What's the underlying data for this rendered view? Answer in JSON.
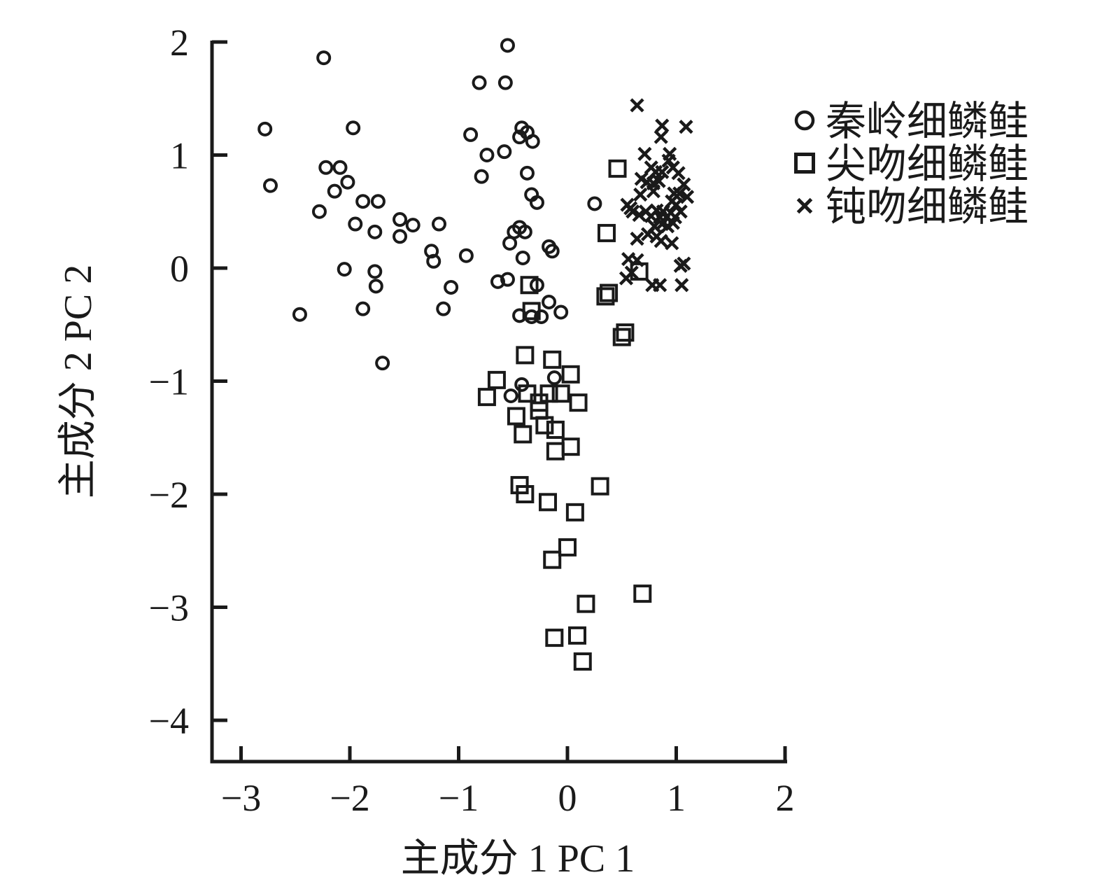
{
  "chart_data": {
    "type": "scatter",
    "title": "",
    "xlabel": "主成分 1 PC 1",
    "ylabel": "主成分 2 PC 2",
    "xticks": [
      -3,
      -2,
      -1,
      0,
      1,
      2
    ],
    "yticks": [
      2,
      1,
      0,
      -1,
      -2,
      -3,
      -4
    ],
    "xlim": [
      -3.27,
      2.02
    ],
    "ylim": [
      -4.37,
      2.01
    ],
    "grid": false,
    "legend_position": "outside-upper-right",
    "ink_color": "#1a1a1a",
    "background_color": "#ffffff",
    "minus_sign": "−",
    "series": [
      {
        "name": "秦岭细鳞鲑",
        "marker": "circle",
        "points": [
          [
            -0.55,
            1.97
          ],
          [
            -2.24,
            1.86
          ],
          [
            -0.81,
            1.64
          ],
          [
            -0.57,
            1.64
          ],
          [
            -2.78,
            1.23
          ],
          [
            -1.97,
            1.24
          ],
          [
            -0.89,
            1.18
          ],
          [
            -0.42,
            1.24
          ],
          [
            -0.37,
            1.2
          ],
          [
            -0.44,
            1.16
          ],
          [
            -0.32,
            1.12
          ],
          [
            -0.74,
            1.0
          ],
          [
            -0.58,
            1.03
          ],
          [
            -2.22,
            0.89
          ],
          [
            -2.09,
            0.89
          ],
          [
            -0.79,
            0.81
          ],
          [
            -0.37,
            0.84
          ],
          [
            -2.73,
            0.73
          ],
          [
            -2.14,
            0.68
          ],
          [
            -2.02,
            0.76
          ],
          [
            -1.88,
            0.59
          ],
          [
            -1.74,
            0.59
          ],
          [
            -0.33,
            0.65
          ],
          [
            -0.28,
            0.58
          ],
          [
            0.25,
            0.57
          ],
          [
            -2.28,
            0.5
          ],
          [
            -1.95,
            0.39
          ],
          [
            -1.77,
            0.32
          ],
          [
            -1.54,
            0.43
          ],
          [
            -1.42,
            0.38
          ],
          [
            -1.54,
            0.28
          ],
          [
            -1.18,
            0.39
          ],
          [
            -0.44,
            0.36
          ],
          [
            -0.39,
            0.32
          ],
          [
            -0.49,
            0.32
          ],
          [
            -0.53,
            0.22
          ],
          [
            -0.41,
            0.09
          ],
          [
            -1.25,
            0.15
          ],
          [
            -1.23,
            0.06
          ],
          [
            -0.93,
            0.11
          ],
          [
            -0.17,
            0.19
          ],
          [
            -0.14,
            0.15
          ],
          [
            -2.05,
            -0.01
          ],
          [
            -1.77,
            -0.03
          ],
          [
            -1.76,
            -0.16
          ],
          [
            -1.07,
            -0.17
          ],
          [
            -0.64,
            -0.12
          ],
          [
            -0.55,
            -0.1
          ],
          [
            -0.28,
            -0.15
          ],
          [
            -0.17,
            -0.3
          ],
          [
            -2.46,
            -0.41
          ],
          [
            -1.88,
            -0.36
          ],
          [
            -1.14,
            -0.36
          ],
          [
            -0.06,
            -0.39
          ],
          [
            -0.44,
            -0.42
          ],
          [
            -0.33,
            -0.43
          ],
          [
            -0.24,
            -0.43
          ],
          [
            -1.7,
            -0.84
          ],
          [
            -0.42,
            -1.03
          ],
          [
            -0.52,
            -1.13
          ],
          [
            -0.12,
            -0.97
          ]
        ]
      },
      {
        "name": "尖吻细鳞鲑",
        "marker": "square",
        "points": [
          [
            0.46,
            0.88
          ],
          [
            0.36,
            0.31
          ],
          [
            0.66,
            -0.03
          ],
          [
            0.38,
            -0.22
          ],
          [
            0.35,
            -0.25
          ],
          [
            -0.35,
            -0.15
          ],
          [
            -0.33,
            -0.38
          ],
          [
            0.53,
            -0.57
          ],
          [
            0.5,
            -0.61
          ],
          [
            -0.39,
            -0.77
          ],
          [
            -0.14,
            -0.81
          ],
          [
            0.03,
            -0.94
          ],
          [
            -0.65,
            -0.99
          ],
          [
            -0.74,
            -1.14
          ],
          [
            -0.37,
            -1.11
          ],
          [
            -0.26,
            -1.19
          ],
          [
            -0.17,
            -1.11
          ],
          [
            -0.06,
            -1.11
          ],
          [
            0.1,
            -1.19
          ],
          [
            -0.26,
            -1.26
          ],
          [
            -0.47,
            -1.31
          ],
          [
            -0.21,
            -1.39
          ],
          [
            -0.11,
            -1.43
          ],
          [
            -0.41,
            -1.47
          ],
          [
            0.03,
            -1.58
          ],
          [
            -0.11,
            -1.62
          ],
          [
            -0.44,
            -1.92
          ],
          [
            -0.39,
            -2.0
          ],
          [
            0.3,
            -1.93
          ],
          [
            -0.18,
            -2.07
          ],
          [
            0.07,
            -2.16
          ],
          [
            0.0,
            -2.47
          ],
          [
            -0.14,
            -2.58
          ],
          [
            0.69,
            -2.88
          ],
          [
            0.17,
            -2.97
          ],
          [
            -0.12,
            -3.27
          ],
          [
            0.09,
            -3.25
          ],
          [
            0.14,
            -3.48
          ]
        ]
      },
      {
        "name": "钝吻细鳞鲑",
        "marker": "cross",
        "points": [
          [
            0.64,
            1.44
          ],
          [
            0.87,
            1.26
          ],
          [
            1.09,
            1.25
          ],
          [
            0.86,
            1.16
          ],
          [
            0.71,
            1.01
          ],
          [
            0.94,
            1.01
          ],
          [
            0.93,
            0.95
          ],
          [
            0.77,
            0.89
          ],
          [
            0.81,
            0.85
          ],
          [
            0.87,
            0.85
          ],
          [
            0.97,
            0.89
          ],
          [
            1.02,
            0.84
          ],
          [
            0.68,
            0.79
          ],
          [
            0.73,
            0.76
          ],
          [
            0.79,
            0.75
          ],
          [
            0.84,
            0.77
          ],
          [
            1.07,
            0.74
          ],
          [
            0.67,
            0.65
          ],
          [
            0.79,
            0.68
          ],
          [
            0.98,
            0.66
          ],
          [
            1.03,
            0.66
          ],
          [
            1.1,
            0.63
          ],
          [
            0.55,
            0.56
          ],
          [
            0.58,
            0.53
          ],
          [
            0.96,
            0.59
          ],
          [
            1.0,
            0.56
          ],
          [
            0.6,
            0.5
          ],
          [
            0.66,
            0.47
          ],
          [
            0.72,
            0.5
          ],
          [
            0.77,
            0.46
          ],
          [
            0.82,
            0.51
          ],
          [
            0.85,
            0.45
          ],
          [
            0.88,
            0.5
          ],
          [
            0.91,
            0.45
          ],
          [
            0.95,
            0.49
          ],
          [
            0.99,
            0.45
          ],
          [
            1.04,
            0.5
          ],
          [
            0.8,
            0.37
          ],
          [
            0.87,
            0.39
          ],
          [
            0.92,
            0.37
          ],
          [
            0.97,
            0.4
          ],
          [
            0.74,
            0.3
          ],
          [
            0.82,
            0.28
          ],
          [
            0.64,
            0.26
          ],
          [
            0.86,
            0.24
          ],
          [
            0.96,
            0.22
          ],
          [
            0.56,
            0.08
          ],
          [
            0.64,
            0.07
          ],
          [
            1.07,
            0.04
          ],
          [
            1.04,
            0.02
          ],
          [
            0.54,
            -0.09
          ],
          [
            0.59,
            -0.04
          ],
          [
            0.78,
            -0.15
          ],
          [
            0.85,
            -0.15
          ],
          [
            1.05,
            -0.15
          ]
        ]
      }
    ]
  }
}
